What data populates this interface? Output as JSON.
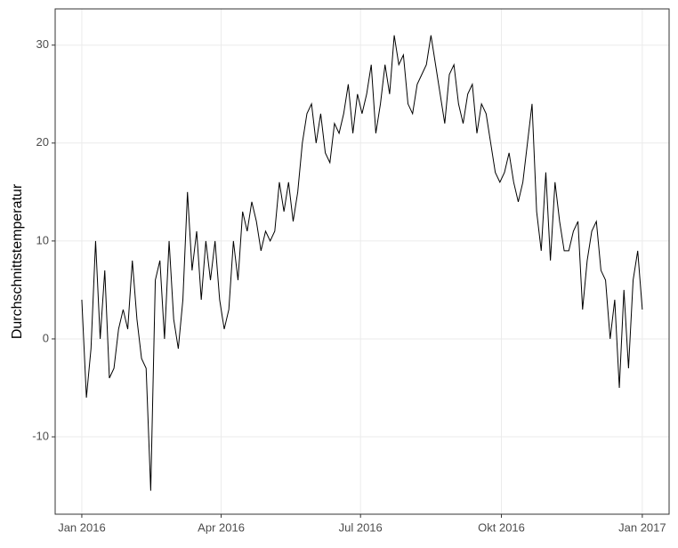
{
  "chart_data": {
    "type": "line",
    "y_label": "Durchschnittstemperatur",
    "x": [
      0,
      3,
      6,
      9,
      12,
      15,
      18,
      21,
      24,
      27,
      30,
      33,
      36,
      39,
      42,
      45,
      48,
      51,
      54,
      57,
      60,
      63,
      66,
      69,
      72,
      75,
      78,
      81,
      84,
      87,
      90,
      93,
      96,
      99,
      102,
      105,
      108,
      111,
      114,
      117,
      120,
      123,
      126,
      129,
      132,
      135,
      138,
      141,
      144,
      147,
      150,
      153,
      156,
      159,
      162,
      165,
      168,
      171,
      174,
      177,
      180,
      183,
      186,
      189,
      192,
      195,
      198,
      201,
      204,
      207,
      210,
      213,
      216,
      219,
      222,
      225,
      228,
      231,
      234,
      237,
      240,
      243,
      246,
      249,
      252,
      255,
      258,
      261,
      264,
      267,
      270,
      273,
      276,
      279,
      282,
      285,
      288,
      291,
      294,
      297,
      300,
      303,
      306,
      309,
      312,
      315,
      318,
      321,
      324,
      327,
      330,
      333,
      336,
      339,
      342,
      345,
      348,
      351,
      354,
      357,
      360,
      363,
      366
    ],
    "values": [
      4,
      -6,
      -1,
      10,
      0,
      7,
      -4,
      -3,
      1,
      3,
      1,
      8,
      2,
      -2,
      -3,
      -15.5,
      6,
      8,
      0,
      10,
      2,
      -1,
      4,
      15,
      7,
      11,
      4,
      10,
      6,
      10,
      4,
      1,
      3,
      10,
      6,
      13,
      11,
      14,
      12,
      9,
      11,
      10,
      11,
      16,
      13,
      16,
      12,
      15,
      20,
      23,
      24,
      20,
      23,
      19,
      18,
      22,
      21,
      23,
      26,
      21,
      25,
      23,
      25,
      28,
      21,
      24,
      28,
      25,
      31,
      28,
      29,
      24,
      23,
      26,
      27,
      28,
      31,
      28,
      25,
      22,
      27,
      28,
      24,
      22,
      25,
      26,
      21,
      24,
      23,
      20,
      17,
      16,
      17,
      19,
      16,
      14,
      16,
      20,
      24,
      13,
      9,
      17,
      8,
      16,
      12,
      9,
      9,
      11,
      12,
      3,
      8,
      11,
      12,
      7,
      6,
      0,
      4,
      -5,
      5,
      -3,
      6,
      9,
      3
    ],
    "color": "#000000",
    "xlim": [
      -17.4,
      383.5
    ],
    "ylim": [
      -17.9,
      33.7
    ],
    "xticks": [
      {
        "value": 0,
        "label": "Jan 2016"
      },
      {
        "value": 91,
        "label": "Apr 2016"
      },
      {
        "value": 182,
        "label": "Jul 2016"
      },
      {
        "value": 274,
        "label": "Okt 2016"
      },
      {
        "value": 366,
        "label": "Jan 2017"
      }
    ],
    "yticks": [
      -10,
      0,
      10,
      20,
      30
    ],
    "grid": true
  }
}
